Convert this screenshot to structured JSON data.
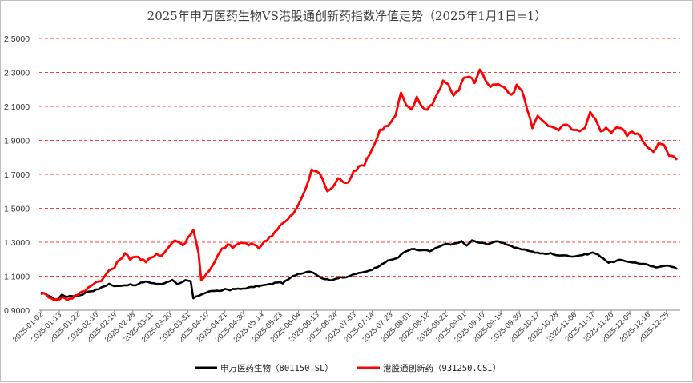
{
  "chart_data": {
    "type": "line",
    "title": "2025年申万医药生物VS港股通创新药指数净值走势（2025年1月1日=1）",
    "xlabel": "",
    "ylabel": "",
    "ylim": [
      0.9,
      2.5
    ],
    "yticks": [
      "0.9000",
      "1.1000",
      "1.3000",
      "1.5000",
      "1.7000",
      "1.9000",
      "2.1000",
      "2.3000",
      "2.5000"
    ],
    "ytick_values": [
      0.9,
      1.1,
      1.3,
      1.5,
      1.7,
      1.9,
      2.1,
      2.3,
      2.5
    ],
    "grid": "horizontal dashed",
    "legend_position": "bottom",
    "x_tick_labels": [
      "2025-01-02",
      "2025-01-13",
      "2025-01-22",
      "2025-02-10",
      "2025-02-19",
      "2025-02-28",
      "2025-03-11",
      "2025-03-20",
      "2025-03-31",
      "2025-04-10",
      "2025-04-21",
      "2025-04-30",
      "2025-05-14",
      "2025-05-23",
      "2025-06-04",
      "2025-06-13",
      "2025-06-24",
      "2025-07-03",
      "2025-07-14",
      "2025-07-23",
      "2025-08-01",
      "2025-08-12",
      "2025-08-21",
      "2025-09-01",
      "2025-09-10",
      "2025-09-19",
      "2025-09-30",
      "2025-10-17",
      "2025-10-28",
      "2025-11-06",
      "2025-11-17",
      "2025-11-26",
      "2025-12-05",
      "2025-12-16",
      "2025-12-25"
    ],
    "x_tick_index": [
      0,
      7,
      14,
      21,
      28,
      35,
      42,
      49,
      56,
      63,
      70,
      77,
      84,
      91,
      98,
      105,
      112,
      119,
      126,
      133,
      140,
      147,
      154,
      161,
      168,
      175,
      182,
      189,
      196,
      203,
      210,
      217,
      224,
      231,
      238
    ],
    "n_points": 243,
    "series": [
      {
        "name": "申万医药生物（801150.SL）",
        "color": "#000000",
        "keypoints": [
          [
            0,
            1.0
          ],
          [
            2,
            0.995
          ],
          [
            4,
            0.975
          ],
          [
            6,
            0.96
          ],
          [
            8,
            0.99
          ],
          [
            10,
            0.98
          ],
          [
            14,
            0.985
          ],
          [
            16,
            0.995
          ],
          [
            18,
            1.01
          ],
          [
            20,
            1.015
          ],
          [
            22,
            1.025
          ],
          [
            24,
            1.04
          ],
          [
            26,
            1.055
          ],
          [
            28,
            1.04
          ],
          [
            30,
            1.045
          ],
          [
            34,
            1.05
          ],
          [
            36,
            1.045
          ],
          [
            38,
            1.06
          ],
          [
            40,
            1.07
          ],
          [
            42,
            1.06
          ],
          [
            44,
            1.055
          ],
          [
            46,
            1.055
          ],
          [
            48,
            1.065
          ],
          [
            50,
            1.08
          ],
          [
            52,
            1.05
          ],
          [
            54,
            1.065
          ],
          [
            55,
            1.075
          ],
          [
            57,
            1.07
          ],
          [
            58,
            0.97
          ],
          [
            60,
            0.985
          ],
          [
            62,
            1.0
          ],
          [
            64,
            1.01
          ],
          [
            66,
            1.015
          ],
          [
            68,
            1.01
          ],
          [
            70,
            1.025
          ],
          [
            72,
            1.02
          ],
          [
            74,
            1.025
          ],
          [
            76,
            1.025
          ],
          [
            78,
            1.03
          ],
          [
            80,
            1.035
          ],
          [
            82,
            1.04
          ],
          [
            84,
            1.045
          ],
          [
            86,
            1.05
          ],
          [
            88,
            1.055
          ],
          [
            90,
            1.065
          ],
          [
            92,
            1.06
          ],
          [
            94,
            1.08
          ],
          [
            96,
            1.1
          ],
          [
            98,
            1.115
          ],
          [
            100,
            1.12
          ],
          [
            102,
            1.13
          ],
          [
            104,
            1.12
          ],
          [
            106,
            1.095
          ],
          [
            108,
            1.085
          ],
          [
            110,
            1.075
          ],
          [
            112,
            1.085
          ],
          [
            114,
            1.095
          ],
          [
            116,
            1.09
          ],
          [
            118,
            1.105
          ],
          [
            120,
            1.115
          ],
          [
            122,
            1.12
          ],
          [
            124,
            1.13
          ],
          [
            126,
            1.14
          ],
          [
            128,
            1.155
          ],
          [
            130,
            1.175
          ],
          [
            132,
            1.19
          ],
          [
            134,
            1.2
          ],
          [
            136,
            1.21
          ],
          [
            138,
            1.24
          ],
          [
            140,
            1.255
          ],
          [
            142,
            1.26
          ],
          [
            144,
            1.25
          ],
          [
            146,
            1.255
          ],
          [
            148,
            1.245
          ],
          [
            150,
            1.265
          ],
          [
            152,
            1.275
          ],
          [
            154,
            1.29
          ],
          [
            156,
            1.285
          ],
          [
            158,
            1.295
          ],
          [
            160,
            1.305
          ],
          [
            162,
            1.28
          ],
          [
            164,
            1.31
          ],
          [
            166,
            1.3
          ],
          [
            168,
            1.295
          ],
          [
            170,
            1.29
          ],
          [
            172,
            1.3
          ],
          [
            174,
            1.305
          ],
          [
            176,
            1.295
          ],
          [
            178,
            1.285
          ],
          [
            180,
            1.27
          ],
          [
            182,
            1.26
          ],
          [
            184,
            1.255
          ],
          [
            186,
            1.25
          ],
          [
            188,
            1.24
          ],
          [
            190,
            1.235
          ],
          [
            192,
            1.23
          ],
          [
            194,
            1.235
          ],
          [
            196,
            1.225
          ],
          [
            198,
            1.22
          ],
          [
            200,
            1.225
          ],
          [
            202,
            1.215
          ],
          [
            204,
            1.22
          ],
          [
            206,
            1.225
          ],
          [
            208,
            1.23
          ],
          [
            210,
            1.24
          ],
          [
            212,
            1.225
          ],
          [
            214,
            1.205
          ],
          [
            216,
            1.18
          ],
          [
            218,
            1.185
          ],
          [
            220,
            1.195
          ],
          [
            222,
            1.19
          ],
          [
            224,
            1.185
          ],
          [
            226,
            1.18
          ],
          [
            228,
            1.175
          ],
          [
            230,
            1.17
          ],
          [
            232,
            1.16
          ],
          [
            234,
            1.15
          ],
          [
            236,
            1.16
          ],
          [
            238,
            1.165
          ],
          [
            240,
            1.155
          ],
          [
            242,
            1.145
          ]
        ]
      },
      {
        "name": "港股通创新药（931250.CSI）",
        "color": "#ff0000",
        "keypoints": [
          [
            0,
            1.0
          ],
          [
            2,
            0.99
          ],
          [
            4,
            0.975
          ],
          [
            6,
            0.96
          ],
          [
            8,
            0.975
          ],
          [
            10,
            0.965
          ],
          [
            12,
            0.975
          ],
          [
            14,
            0.995
          ],
          [
            16,
            1.005
          ],
          [
            18,
            1.03
          ],
          [
            20,
            1.06
          ],
          [
            22,
            1.07
          ],
          [
            24,
            1.09
          ],
          [
            26,
            1.135
          ],
          [
            28,
            1.15
          ],
          [
            30,
            1.2
          ],
          [
            32,
            1.23
          ],
          [
            34,
            1.205
          ],
          [
            36,
            1.22
          ],
          [
            38,
            1.2
          ],
          [
            40,
            1.18
          ],
          [
            42,
            1.21
          ],
          [
            44,
            1.235
          ],
          [
            46,
            1.22
          ],
          [
            48,
            1.26
          ],
          [
            50,
            1.3
          ],
          [
            52,
            1.31
          ],
          [
            54,
            1.28
          ],
          [
            56,
            1.33
          ],
          [
            58,
            1.37
          ],
          [
            60,
            1.24
          ],
          [
            61,
            1.08
          ],
          [
            63,
            1.11
          ],
          [
            65,
            1.15
          ],
          [
            67,
            1.21
          ],
          [
            69,
            1.26
          ],
          [
            71,
            1.285
          ],
          [
            73,
            1.27
          ],
          [
            75,
            1.29
          ],
          [
            77,
            1.3
          ],
          [
            79,
            1.28
          ],
          [
            81,
            1.29
          ],
          [
            83,
            1.27
          ],
          [
            85,
            1.3
          ],
          [
            87,
            1.33
          ],
          [
            89,
            1.36
          ],
          [
            91,
            1.4
          ],
          [
            93,
            1.42
          ],
          [
            95,
            1.45
          ],
          [
            97,
            1.49
          ],
          [
            99,
            1.55
          ],
          [
            101,
            1.63
          ],
          [
            103,
            1.72
          ],
          [
            105,
            1.72
          ],
          [
            107,
            1.68
          ],
          [
            109,
            1.6
          ],
          [
            111,
            1.62
          ],
          [
            113,
            1.68
          ],
          [
            115,
            1.65
          ],
          [
            117,
            1.66
          ],
          [
            119,
            1.72
          ],
          [
            121,
            1.74
          ],
          [
            123,
            1.76
          ],
          [
            125,
            1.82
          ],
          [
            127,
            1.88
          ],
          [
            129,
            1.96
          ],
          [
            131,
            1.98
          ],
          [
            133,
            2.0
          ],
          [
            135,
            2.05
          ],
          [
            137,
            2.18
          ],
          [
            139,
            2.1
          ],
          [
            141,
            2.08
          ],
          [
            143,
            2.15
          ],
          [
            145,
            2.1
          ],
          [
            147,
            2.08
          ],
          [
            149,
            2.12
          ],
          [
            151,
            2.18
          ],
          [
            153,
            2.25
          ],
          [
            155,
            2.23
          ],
          [
            157,
            2.16
          ],
          [
            159,
            2.2
          ],
          [
            161,
            2.27
          ],
          [
            163,
            2.28
          ],
          [
            165,
            2.24
          ],
          [
            167,
            2.32
          ],
          [
            169,
            2.26
          ],
          [
            171,
            2.21
          ],
          [
            173,
            2.23
          ],
          [
            175,
            2.22
          ],
          [
            177,
            2.2
          ],
          [
            179,
            2.16
          ],
          [
            181,
            2.22
          ],
          [
            183,
            2.2
          ],
          [
            185,
            2.08
          ],
          [
            187,
            1.98
          ],
          [
            189,
            2.04
          ],
          [
            191,
            2.02
          ],
          [
            193,
            1.99
          ],
          [
            195,
            1.97
          ],
          [
            197,
            1.96
          ],
          [
            199,
            1.99
          ],
          [
            201,
            1.98
          ],
          [
            203,
            1.96
          ],
          [
            205,
            1.95
          ],
          [
            207,
            1.97
          ],
          [
            209,
            2.06
          ],
          [
            211,
            2.02
          ],
          [
            213,
            1.96
          ],
          [
            215,
            1.97
          ],
          [
            217,
            1.95
          ],
          [
            219,
            1.98
          ],
          [
            221,
            1.97
          ],
          [
            223,
            1.93
          ],
          [
            225,
            1.95
          ],
          [
            227,
            1.94
          ],
          [
            229,
            1.9
          ],
          [
            231,
            1.86
          ],
          [
            233,
            1.84
          ],
          [
            235,
            1.88
          ],
          [
            237,
            1.87
          ],
          [
            239,
            1.81
          ],
          [
            241,
            1.8
          ],
          [
            242,
            1.78
          ]
        ]
      }
    ]
  }
}
